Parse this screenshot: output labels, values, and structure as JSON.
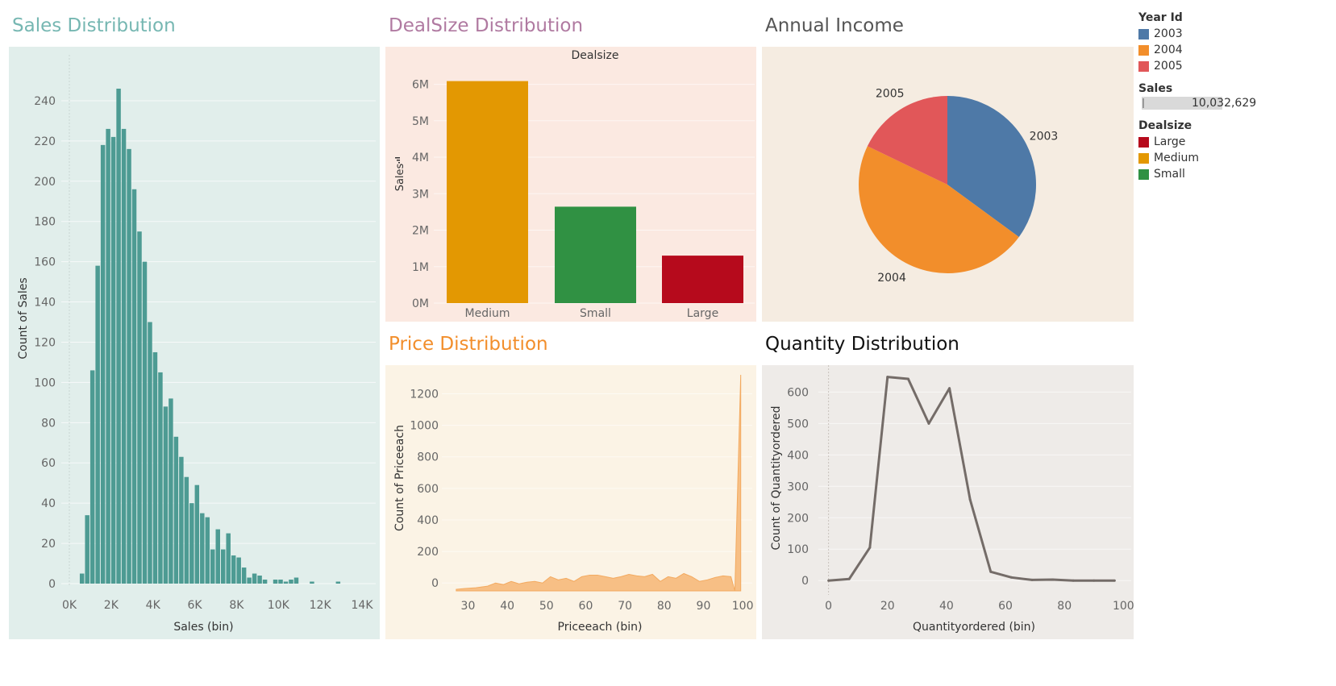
{
  "titles": {
    "sales": "Sales Distribution",
    "dealsize": "DealSize Distribution",
    "annual": "Annual Income",
    "price": "Price Distribution",
    "quantity": "Quantity Distribution"
  },
  "colors": {
    "sales_title": "#76b7b2",
    "dealsize_title": "#b07aa1",
    "annual_title": "#555555",
    "price_title": "#f28e2b",
    "quantity_title": "#111111",
    "sales_bg": "#e1eeeb",
    "dealsize_bg": "#fbe9e1",
    "annual_bg": "#f5ece1",
    "price_bg": "#fbf3e5",
    "quantity_bg": "#eeebe8",
    "hist_bar": "#4d9b93",
    "price_fill": "#f7bf85",
    "quantity_line": "#746c68"
  },
  "legend": {
    "year_title": "Year Id",
    "years": [
      {
        "label": "2003",
        "color": "#4e79a7"
      },
      {
        "label": "2004",
        "color": "#f28e2b"
      },
      {
        "label": "2005",
        "color": "#e15759"
      }
    ],
    "sales_title": "Sales",
    "sales_value": "10,032,629",
    "dealsize_title": "Dealsize",
    "dealsizes": [
      {
        "label": "Large",
        "color": "#b60a1c"
      },
      {
        "label": "Medium",
        "color": "#e39802"
      },
      {
        "label": "Small",
        "color": "#309143"
      }
    ]
  },
  "chart_data": [
    {
      "id": "sales",
      "type": "bar",
      "title": "Sales Distribution",
      "xlabel": "Sales (bin)",
      "ylabel": "Count of Sales",
      "xlim": [
        0,
        14000
      ],
      "ylim": [
        0,
        250
      ],
      "x_ticks": [
        "0K",
        "2K",
        "4K",
        "6K",
        "8K",
        "10K",
        "12K",
        "14K"
      ],
      "y_ticks": [
        0,
        20,
        40,
        60,
        80,
        100,
        120,
        140,
        160,
        180,
        200,
        220,
        240
      ],
      "bin_width": 250,
      "x": [
        500,
        750,
        1000,
        1250,
        1500,
        1750,
        2000,
        2250,
        2500,
        2750,
        3000,
        3250,
        3500,
        3750,
        4000,
        4250,
        4500,
        4750,
        5000,
        5250,
        5500,
        5750,
        6000,
        6250,
        6500,
        6750,
        7000,
        7250,
        7500,
        7750,
        8000,
        8250,
        8500,
        8750,
        9000,
        9250,
        9500,
        9750,
        10000,
        10250,
        10500,
        10750,
        11000,
        11250,
        11500,
        11750,
        12000,
        12250,
        12500,
        12750,
        13000,
        13250,
        13500,
        13750
      ],
      "values": [
        5,
        34,
        106,
        158,
        218,
        226,
        222,
        246,
        226,
        216,
        196,
        175,
        160,
        130,
        115,
        105,
        88,
        92,
        73,
        63,
        53,
        40,
        49,
        35,
        33,
        17,
        27,
        17,
        25,
        14,
        13,
        8,
        3,
        5,
        4,
        2,
        0,
        2,
        2,
        1,
        2,
        3,
        0,
        0,
        1,
        0,
        0,
        0,
        0,
        1,
        0,
        0,
        0,
        0
      ]
    },
    {
      "id": "dealsize",
      "type": "bar",
      "title": "DealSize Distribution",
      "header": "Dealsize",
      "ylabel": "Sales",
      "categories": [
        "Medium",
        "Small",
        "Large"
      ],
      "values": [
        6088000,
        2644000,
        1302000
      ],
      "colors": [
        "#e39802",
        "#309143",
        "#b60a1c"
      ],
      "ylim": [
        0,
        6300000
      ],
      "y_ticks": [
        "0M",
        "1M",
        "2M",
        "3M",
        "4M",
        "5M",
        "6M"
      ]
    },
    {
      "id": "annual",
      "type": "pie",
      "title": "Annual Income",
      "categories": [
        "2003",
        "2004",
        "2005"
      ],
      "values": [
        3516980,
        4724163,
        1791486
      ],
      "colors": [
        "#4e79a7",
        "#f28e2b",
        "#e15759"
      ]
    },
    {
      "id": "price",
      "type": "area",
      "title": "Price Distribution",
      "xlabel": "Priceeach (bin)",
      "ylabel": "Count of Priceeach",
      "xlim": [
        26,
        101
      ],
      "ylim": [
        -50,
        1320
      ],
      "x_ticks": [
        30,
        40,
        50,
        60,
        70,
        80,
        90,
        100
      ],
      "y_ticks": [
        0,
        200,
        400,
        600,
        800,
        1000,
        1200
      ],
      "x": [
        27,
        29,
        32,
        35,
        37,
        39,
        41,
        43,
        45,
        47,
        49,
        51,
        53,
        55,
        57,
        59,
        61,
        63,
        65,
        67,
        69,
        71,
        73,
        75,
        77,
        79,
        81,
        83,
        85,
        87,
        89,
        91,
        93,
        95,
        97,
        98,
        99.5
      ],
      "values": [
        -40,
        -35,
        -30,
        -20,
        0,
        -10,
        10,
        -5,
        5,
        10,
        0,
        40,
        20,
        30,
        10,
        40,
        50,
        50,
        40,
        30,
        40,
        55,
        45,
        40,
        55,
        10,
        40,
        30,
        60,
        40,
        10,
        20,
        35,
        45,
        40,
        -50,
        1320
      ]
    },
    {
      "id": "quantity",
      "type": "line",
      "title": "Quantity Distribution",
      "xlabel": "Quantityordered (bin)",
      "ylabel": "Count of Quantityordered",
      "xlim": [
        -4,
        101
      ],
      "ylim": [
        -20,
        660
      ],
      "x_ticks": [
        0,
        20,
        40,
        60,
        80,
        100
      ],
      "y_ticks": [
        0,
        100,
        200,
        300,
        400,
        500,
        600
      ],
      "x": [
        0,
        7,
        14,
        20,
        27,
        34,
        41,
        48,
        55,
        62,
        69,
        76,
        83,
        90,
        97
      ],
      "values": [
        0,
        5,
        105,
        648,
        642,
        500,
        612,
        258,
        28,
        10,
        2,
        3,
        0,
        0,
        0
      ]
    }
  ]
}
